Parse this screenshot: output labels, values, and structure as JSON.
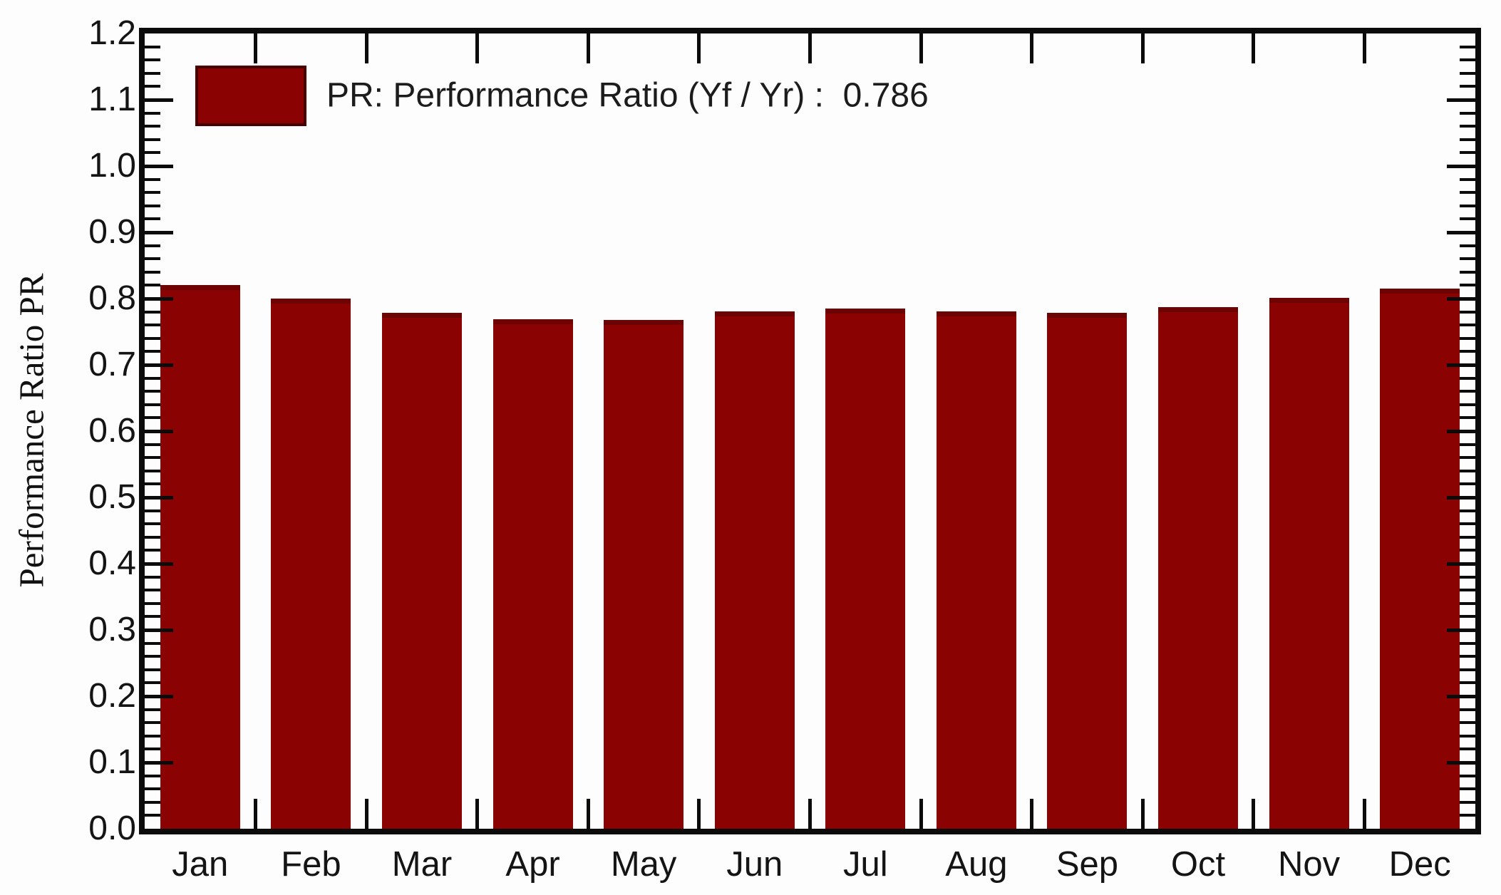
{
  "chart_data": {
    "type": "bar",
    "title": "",
    "xlabel": "",
    "ylabel": "Performance Ratio PR",
    "categories": [
      "Jan",
      "Feb",
      "Mar",
      "Apr",
      "May",
      "Jun",
      "Jul",
      "Aug",
      "Sep",
      "Oct",
      "Nov",
      "Dec"
    ],
    "values": [
      0.82,
      0.8,
      0.778,
      0.769,
      0.768,
      0.781,
      0.785,
      0.781,
      0.778,
      0.787,
      0.801,
      0.815
    ],
    "ylim": [
      0.0,
      1.2
    ],
    "y_major_step": 0.1,
    "y_minor_step": 0.02,
    "y_tick_labels": [
      "0.0",
      "0.1",
      "0.2",
      "0.3",
      "0.4",
      "0.5",
      "0.6",
      "0.7",
      "0.8",
      "0.9",
      "1.0",
      "1.1",
      "1.2"
    ],
    "grid": false,
    "legend_position": "top-left",
    "legend_label": "PR: Performance Ratio (Yf / Yr) :  0.786",
    "legend_value": "0.786",
    "bar_color": "#8B0202"
  }
}
